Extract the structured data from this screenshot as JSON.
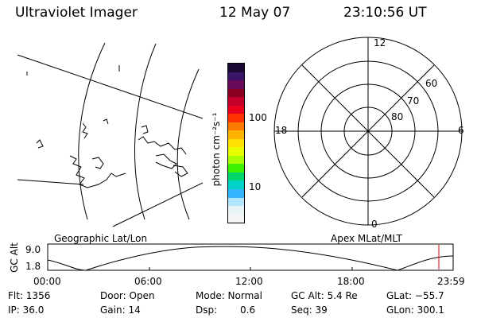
{
  "header": {
    "instrument": "Ultraviolet Imager",
    "date": "12 May 07",
    "time": "23:10:56 UT"
  },
  "colorbar": {
    "unit_label": "photon cm⁻²s⁻¹",
    "ticks": [
      "100",
      "10"
    ],
    "colors": [
      "#1a0a33",
      "#3a1466",
      "#6a0a5a",
      "#8a0022",
      "#c2002a",
      "#e8001c",
      "#ff3300",
      "#ff7a00",
      "#ffb300",
      "#ffe000",
      "#e6ff00",
      "#a8ff00",
      "#3cf200",
      "#00d46a",
      "#00d2c8",
      "#33b6ff",
      "#b4e6ff",
      "#e9f4f6",
      "#f4f4f4"
    ]
  },
  "polar": {
    "labels": [
      "12",
      "6",
      "0",
      "18"
    ],
    "lat_labels": [
      "60",
      "70",
      "80"
    ]
  },
  "panel_labels": {
    "left": "Geographic Lat/Lon",
    "right": "Apex MLat/MLT"
  },
  "altitude_plot": {
    "ylabel": "GC Alt",
    "yticks": [
      "9.0",
      "1.8"
    ],
    "xticks": [
      "00:00",
      "06:00",
      "12:00",
      "18:00",
      "23:59"
    ],
    "marker_color": "#dd0000"
  },
  "info": {
    "flt": "Flt: 1356",
    "door": "Door: Open",
    "mode": "Mode: Normal",
    "gc_alt": "GC Alt: 5.4 Re",
    "glat": "GLat: −55.7",
    "ip": "IP: 36.0",
    "gain": "Gain: 14",
    "dsp_label": "Dsp:",
    "dsp_value": "0.6",
    "seq": "Seq: 39",
    "glon": "GLon: 300.1"
  }
}
